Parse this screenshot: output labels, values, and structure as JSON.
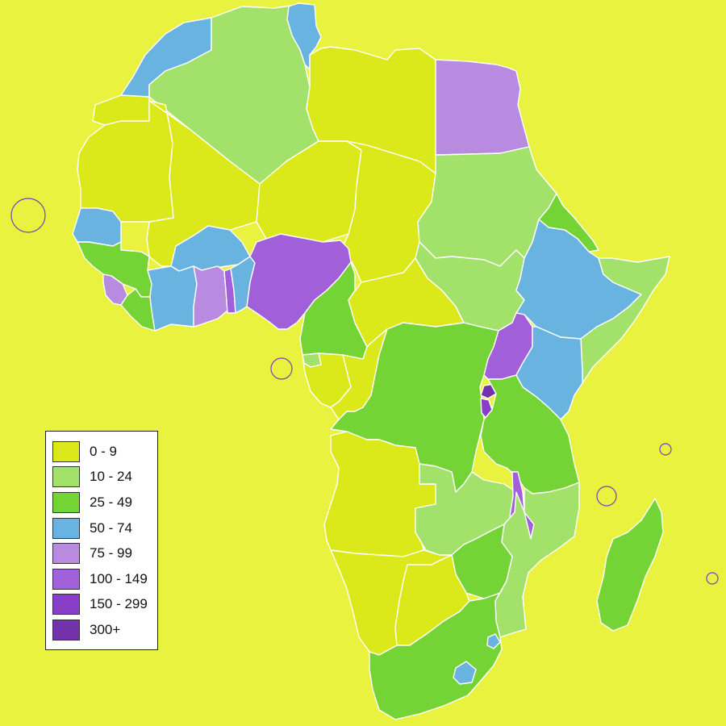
{
  "legend": {
    "items": [
      {
        "label": "0 - 9",
        "color": "#dbe91a"
      },
      {
        "label": "10 - 24",
        "color": "#a2e26b"
      },
      {
        "label": "25 - 49",
        "color": "#74d335"
      },
      {
        "label": "50 - 74",
        "color": "#69b3e0"
      },
      {
        "label": "75 - 99",
        "color": "#b88be0"
      },
      {
        "label": "100 - 149",
        "color": "#a25fda"
      },
      {
        "label": "150 - 299",
        "color": "#8a3ec7"
      },
      {
        "label": "300+",
        "color": "#7332a9"
      }
    ]
  },
  "countries": [
    {
      "name": "Morocco",
      "bin": 3
    },
    {
      "name": "Algeria",
      "bin": 1
    },
    {
      "name": "Tunisia",
      "bin": 3
    },
    {
      "name": "Libya",
      "bin": 0
    },
    {
      "name": "Egypt",
      "bin": 4
    },
    {
      "name": "Western Sahara",
      "bin": 0
    },
    {
      "name": "Mauritania",
      "bin": 0
    },
    {
      "name": "Mali",
      "bin": 0
    },
    {
      "name": "Niger",
      "bin": 0
    },
    {
      "name": "Chad",
      "bin": 0
    },
    {
      "name": "Sudan",
      "bin": 1
    },
    {
      "name": "Eritrea",
      "bin": 2
    },
    {
      "name": "Senegal",
      "bin": 3
    },
    {
      "name": "Guinea",
      "bin": 2
    },
    {
      "name": "Sierra Leone",
      "bin": 4
    },
    {
      "name": "Liberia",
      "bin": 2
    },
    {
      "name": "Burkina Faso",
      "bin": 3
    },
    {
      "name": "Cote d'Ivoire",
      "bin": 3
    },
    {
      "name": "Ghana",
      "bin": 4
    },
    {
      "name": "Togo",
      "bin": 5
    },
    {
      "name": "Benin",
      "bin": 3
    },
    {
      "name": "Nigeria",
      "bin": 5
    },
    {
      "name": "Cameroon",
      "bin": 2
    },
    {
      "name": "Central African Republic",
      "bin": 0
    },
    {
      "name": "South Sudan",
      "bin": 1
    },
    {
      "name": "Ethiopia",
      "bin": 3
    },
    {
      "name": "Somalia",
      "bin": 1
    },
    {
      "name": "Gabon",
      "bin": 0
    },
    {
      "name": "Republic of the Congo",
      "bin": 0
    },
    {
      "name": "DR Congo",
      "bin": 2
    },
    {
      "name": "Uganda",
      "bin": 5
    },
    {
      "name": "Kenya",
      "bin": 3
    },
    {
      "name": "Rwanda",
      "bin": 7
    },
    {
      "name": "Burundi",
      "bin": 6
    },
    {
      "name": "Tanzania",
      "bin": 2
    },
    {
      "name": "Angola",
      "bin": 0
    },
    {
      "name": "Zambia",
      "bin": 1
    },
    {
      "name": "Malawi",
      "bin": 5
    },
    {
      "name": "Mozambique",
      "bin": 1
    },
    {
      "name": "Zimbabwe",
      "bin": 2
    },
    {
      "name": "Namibia",
      "bin": 0
    },
    {
      "name": "Botswana",
      "bin": 0
    },
    {
      "name": "South Africa",
      "bin": 2
    },
    {
      "name": "Lesotho",
      "bin": 3
    },
    {
      "name": "Eswatini",
      "bin": 3
    },
    {
      "name": "Madagascar",
      "bin": 2
    },
    {
      "name": "Equatorial Guinea",
      "bin": 1
    }
  ]
}
